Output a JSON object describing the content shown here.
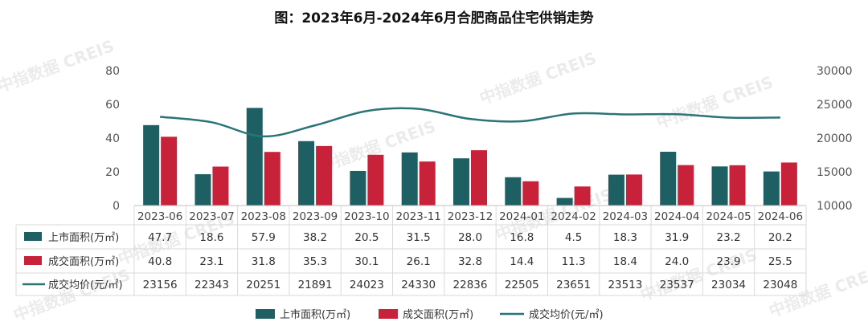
{
  "title": "图：2023年6月-2024年6月合肥商品住宅供销走势",
  "watermark": "中指数据 CREIS",
  "colors": {
    "supply": "#1d5f63",
    "sales": "#c8213a",
    "price": "#2a7478"
  },
  "chart_data": {
    "type": "bar",
    "categories": [
      "2023-06",
      "2023-07",
      "2023-08",
      "2023-09",
      "2023-10",
      "2023-11",
      "2023-12",
      "2024-01",
      "2024-02",
      "2024-03",
      "2024-04",
      "2024-05",
      "2024-06"
    ],
    "series": [
      {
        "name": "上市面积(万㎡)",
        "type": "bar",
        "axis": "left",
        "values": [
          47.7,
          18.6,
          57.9,
          38.2,
          20.5,
          31.5,
          28.0,
          16.8,
          4.5,
          18.3,
          31.9,
          23.2,
          20.2
        ],
        "labels": [
          "47.7",
          "18.6",
          "57.9",
          "38.2",
          "20.5",
          "31.5",
          "28.0",
          "16.8",
          "4.5",
          "18.3",
          "31.9",
          "23.2",
          "20.2"
        ]
      },
      {
        "name": "成交面积(万㎡)",
        "type": "bar",
        "axis": "left",
        "values": [
          40.8,
          23.1,
          31.8,
          35.3,
          30.1,
          26.1,
          32.8,
          14.4,
          11.3,
          18.4,
          24.0,
          23.9,
          25.5
        ],
        "labels": [
          "40.8",
          "23.1",
          "31.8",
          "35.3",
          "30.1",
          "26.1",
          "32.8",
          "14.4",
          "11.3",
          "18.4",
          "24.0",
          "23.9",
          "25.5"
        ]
      },
      {
        "name": "成交均价(元/㎡)",
        "type": "line",
        "axis": "right",
        "values": [
          23156,
          22343,
          20251,
          21891,
          24023,
          24330,
          22836,
          22505,
          23651,
          23513,
          23537,
          23034,
          23048
        ],
        "labels": [
          "23156",
          "22343",
          "20251",
          "21891",
          "24023",
          "24330",
          "22836",
          "22505",
          "23651",
          "23513",
          "23537",
          "23034",
          "23048"
        ]
      }
    ],
    "y_left": {
      "range": [
        0,
        80
      ],
      "ticks": [
        "0",
        "20",
        "40",
        "60",
        "80"
      ]
    },
    "y_right": {
      "range": [
        10000,
        30000
      ],
      "ticks": [
        "10000",
        "15000",
        "20000",
        "25000",
        "30000"
      ]
    },
    "grid": false,
    "legend": "bottom"
  }
}
